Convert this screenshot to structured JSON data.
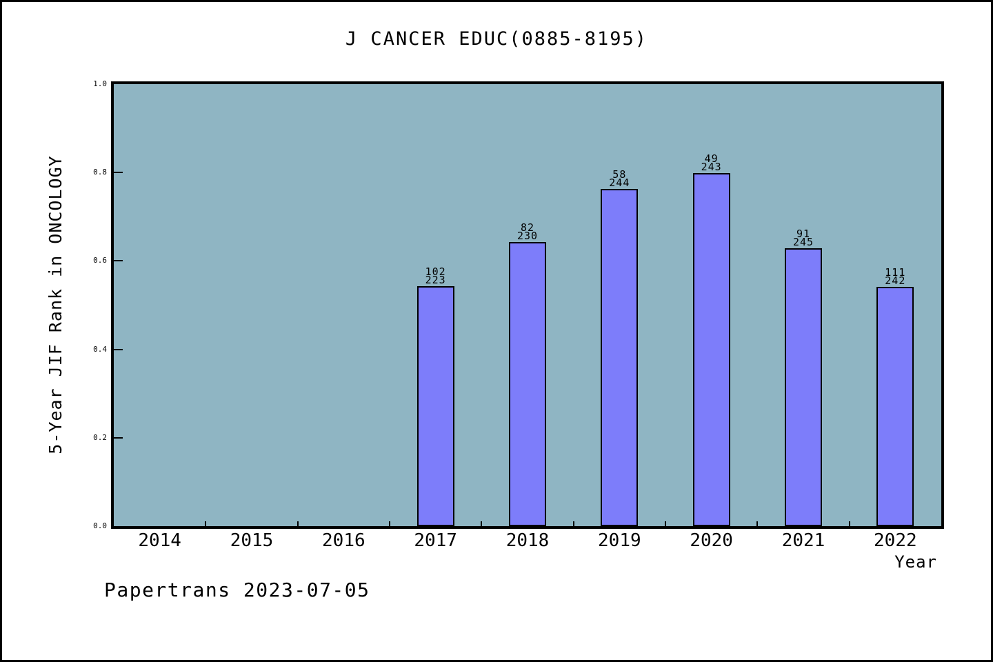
{
  "title": "J CANCER EDUC(0885-8195)",
  "footer": "Papertrans 2023-07-05",
  "chart_data": {
    "type": "bar",
    "title": "J CANCER EDUC(0885-8195)",
    "xlabel": "Year",
    "ylabel": "5-Year JIF Rank in ONCOLOGY",
    "ylim": [
      0.0,
      1.0
    ],
    "yticks": [
      "0.0",
      "0.2",
      "0.4",
      "0.6",
      "0.8",
      "1.0"
    ],
    "categories": [
      "2014",
      "2015",
      "2016",
      "2017",
      "2018",
      "2019",
      "2020",
      "2021",
      "2022"
    ],
    "grid": false,
    "legend_position": "none",
    "bars": [
      {
        "category": "2017",
        "rank": 102,
        "total": 223,
        "value": 0.5426
      },
      {
        "category": "2018",
        "rank": 82,
        "total": 230,
        "value": 0.6435
      },
      {
        "category": "2019",
        "rank": 58,
        "total": 244,
        "value": 0.7623
      },
      {
        "category": "2020",
        "rank": 49,
        "total": 243,
        "value": 0.7984
      },
      {
        "category": "2021",
        "rank": 91,
        "total": 245,
        "value": 0.6286
      },
      {
        "category": "2022",
        "rank": 111,
        "total": 242,
        "value": 0.5413
      }
    ],
    "colors": {
      "bar_fill": "#7d7dfa",
      "bar_border": "#000000",
      "plot_bg": "#8fb5c3",
      "axis": "#000000",
      "text": "#000000",
      "page_bg": "#ffffff"
    }
  }
}
